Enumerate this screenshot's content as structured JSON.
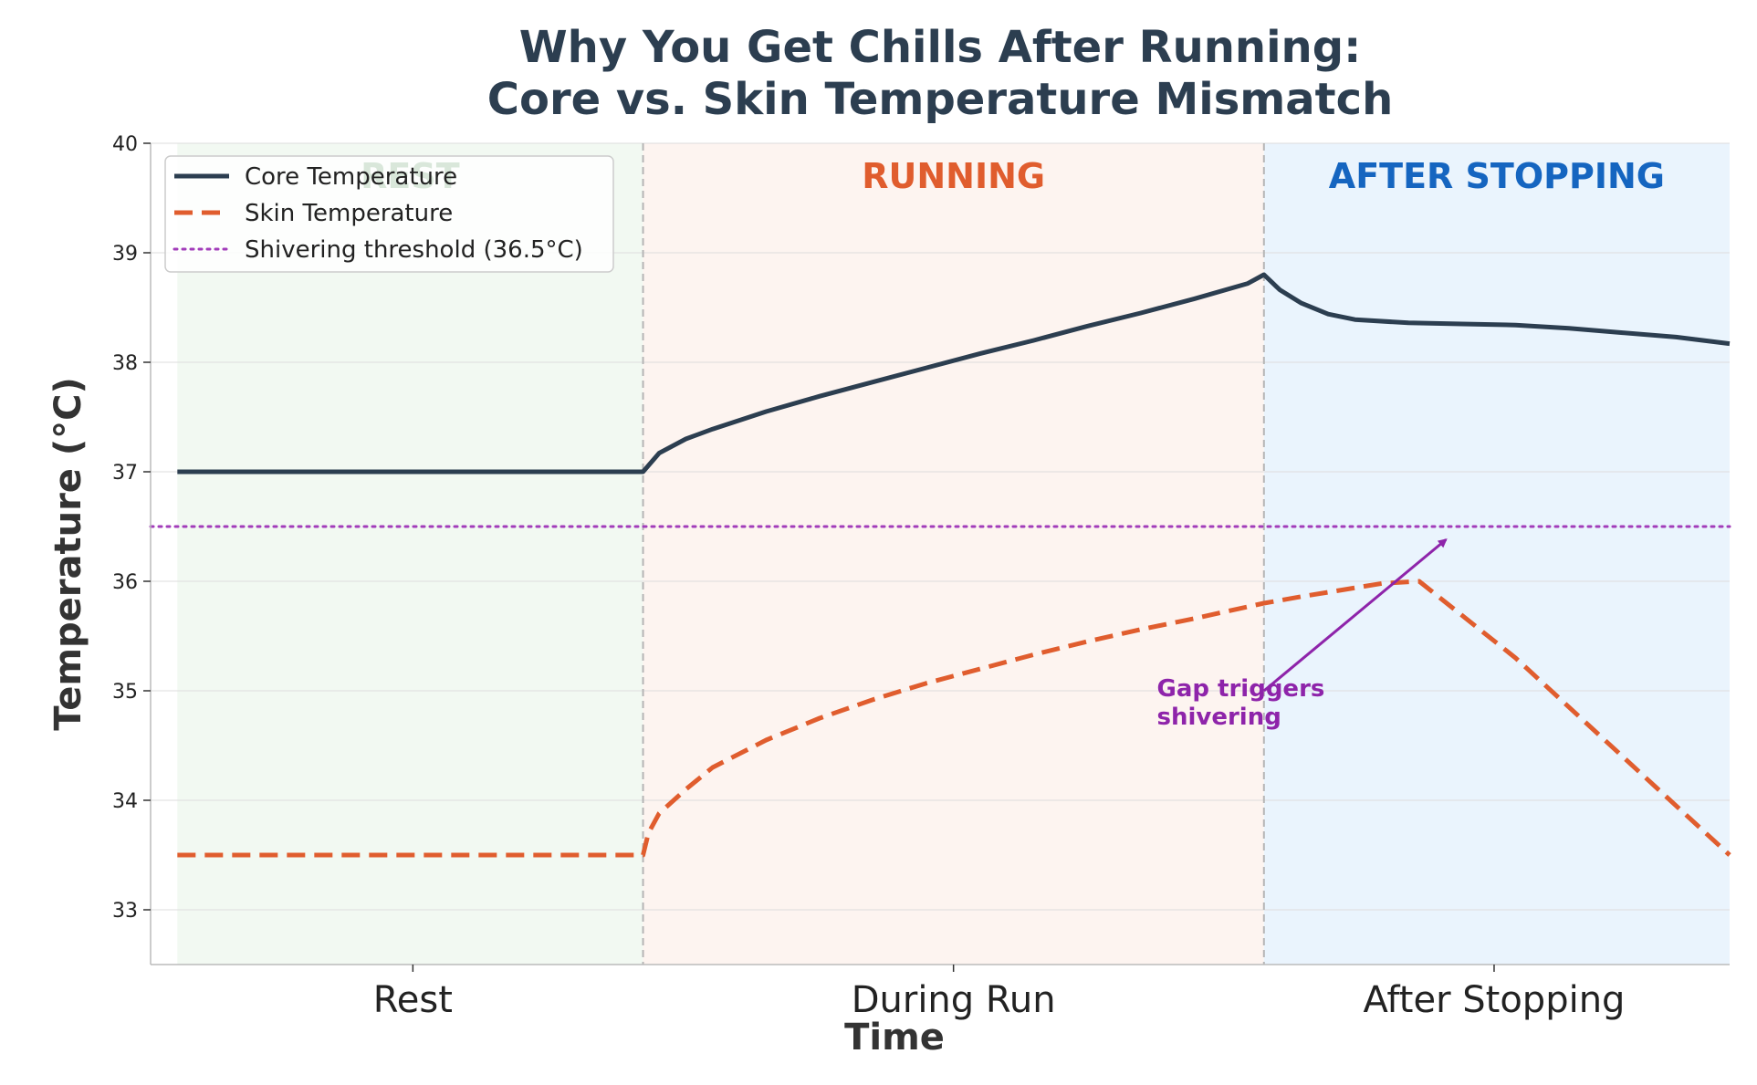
{
  "chart_data": {
    "type": "line",
    "title_lines": [
      "Why You Get Chills After Running:",
      "Core vs. Skin Temperature Mismatch"
    ],
    "xlabel": "Time",
    "ylabel": "Temperature (°C)",
    "ylim": [
      32.5,
      40
    ],
    "xlim": [
      -0.05,
      2.9
    ],
    "yticks": [
      33,
      34,
      35,
      36,
      37,
      38,
      39,
      40
    ],
    "xticks": [
      {
        "x": 0.44,
        "label": "Rest"
      },
      {
        "x": 1.45,
        "label": "During Run"
      },
      {
        "x": 2.46,
        "label": "After Stopping"
      }
    ],
    "grid": true,
    "legend_position": "top-left",
    "phases": [
      {
        "start": 0.0,
        "end": 0.87,
        "label": "REST",
        "label_color": "#2e7d32",
        "fill": "#f2f9f2"
      },
      {
        "start": 0.87,
        "end": 2.03,
        "label": "RUNNING",
        "label_color": "#e05d2e",
        "fill": "#fdf4f0"
      },
      {
        "start": 2.03,
        "end": 2.9,
        "label": "AFTER STOPPING",
        "label_color": "#1565c0",
        "fill": "#eaf4fd"
      }
    ],
    "phase_boundaries": [
      0.87,
      2.03
    ],
    "series": [
      {
        "name": "Core Temperature",
        "color": "#2c3e50",
        "style": "solid",
        "x": [
          0,
          0.2,
          0.4,
          0.6,
          0.87,
          0.9,
          0.95,
          1.0,
          1.1,
          1.2,
          1.3,
          1.4,
          1.5,
          1.6,
          1.7,
          1.8,
          1.9,
          2.0,
          2.03,
          2.06,
          2.1,
          2.15,
          2.2,
          2.3,
          2.4,
          2.5,
          2.6,
          2.7,
          2.8,
          2.9
        ],
        "y": [
          37.0,
          37.0,
          37.0,
          37.0,
          37.0,
          37.17,
          37.3,
          37.39,
          37.55,
          37.69,
          37.82,
          37.95,
          38.08,
          38.2,
          38.33,
          38.45,
          38.58,
          38.72,
          38.8,
          38.66,
          38.54,
          38.44,
          38.39,
          38.36,
          38.35,
          38.34,
          38.31,
          38.27,
          38.23,
          38.17
        ]
      },
      {
        "name": "Skin Temperature",
        "color": "#e05d2e",
        "style": "dashed",
        "x": [
          0,
          0.2,
          0.4,
          0.6,
          0.87,
          0.88,
          0.9,
          0.95,
          1.0,
          1.1,
          1.2,
          1.3,
          1.4,
          1.5,
          1.6,
          1.7,
          1.8,
          1.9,
          2.03,
          2.1,
          2.2,
          2.25,
          2.32,
          2.5,
          2.7,
          2.9
        ],
        "y": [
          33.5,
          33.5,
          33.5,
          33.5,
          33.5,
          33.7,
          33.88,
          34.1,
          34.3,
          34.55,
          34.75,
          34.92,
          35.07,
          35.2,
          35.33,
          35.45,
          35.56,
          35.66,
          35.8,
          35.86,
          35.94,
          35.98,
          36.0,
          35.3,
          34.4,
          33.5
        ]
      }
    ],
    "reference_lines": [
      {
        "name": "Shivering threshold (36.5°C)",
        "y": 36.5,
        "color": "#a23cba",
        "style": "dotted"
      }
    ],
    "annotation": {
      "text_lines": [
        "Gap triggers",
        "shivering"
      ],
      "color": "#8e24aa",
      "text_x": 1.83,
      "text_y": 34.95,
      "arrow_from": [
        2.03,
        35.0
      ],
      "arrow_to": [
        2.37,
        36.38
      ]
    }
  }
}
